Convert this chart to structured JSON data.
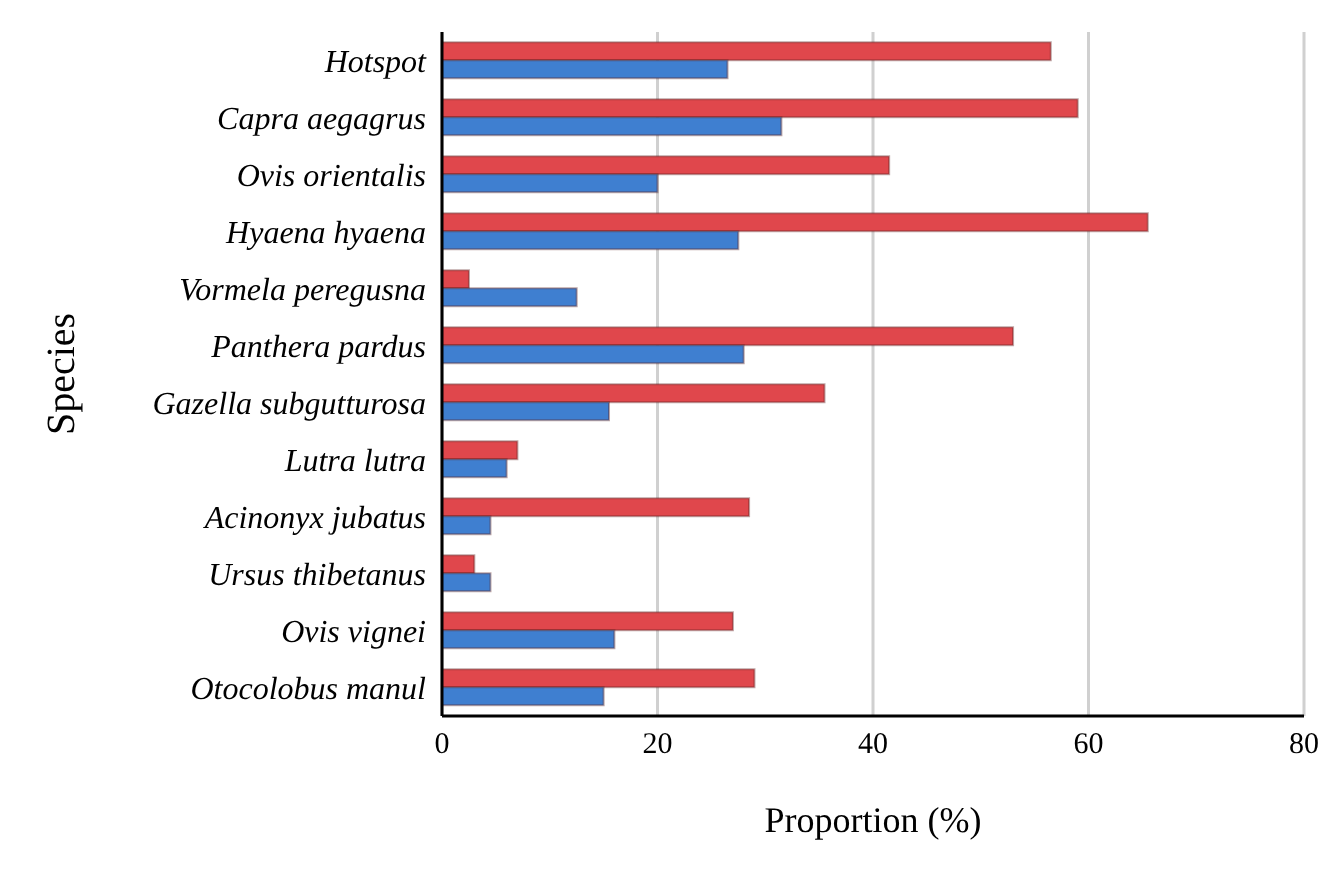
{
  "chart_data": {
    "type": "bar",
    "orientation": "horizontal",
    "xlabel": "Proportion (%)",
    "ylabel": "Species",
    "categories": [
      "Hotspot",
      "Capra aegagrus",
      "Ovis orientalis",
      "Hyaena hyaena",
      "Vormela peregusna",
      "Panthera pardus",
      "Gazella subgutturosa",
      "Lutra lutra",
      "Acinonyx jubatus",
      "Ursus thibetanus",
      "Ovis vignei",
      "Otocolobus manul"
    ],
    "series": [
      {
        "color": "#e0474c",
        "values": [
          56.5,
          59,
          41.5,
          65.5,
          2.5,
          53,
          35.5,
          7,
          28.5,
          3,
          27,
          29
        ]
      },
      {
        "color": "#3f7fd0",
        "values": [
          26.5,
          31.5,
          20,
          27.5,
          12.5,
          28,
          15.5,
          6,
          4.5,
          4.5,
          16,
          15
        ]
      }
    ],
    "xlim": [
      0,
      80
    ],
    "xticks": [
      0,
      20,
      40,
      60,
      80
    ],
    "grid": "x",
    "legend": false
  }
}
